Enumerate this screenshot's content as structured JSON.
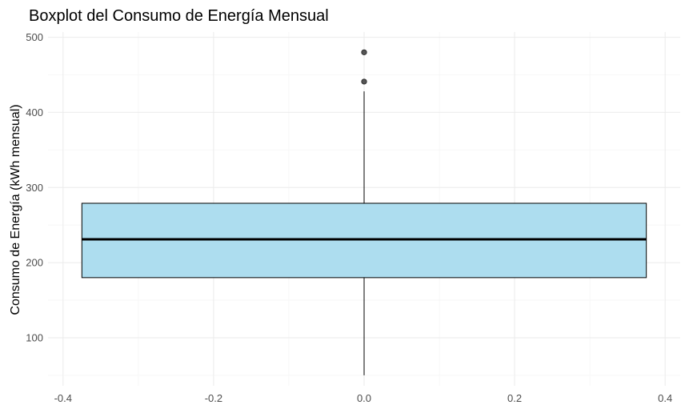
{
  "chart_data": {
    "type": "boxplot",
    "title": "Boxplot del Consumo de Energía Mensual",
    "xlabel": "",
    "ylabel": "Consumo de Energía (kWh mensual)",
    "xlim": [
      -0.42,
      0.42
    ],
    "ylim": [
      36,
      507
    ],
    "x_ticks": [
      -0.4,
      -0.2,
      0.0,
      0.2,
      0.4
    ],
    "x_tick_labels": [
      "-0.4",
      "-0.2",
      "0.0",
      "0.2",
      "0.4"
    ],
    "y_ticks": [
      100,
      200,
      300,
      400,
      500
    ],
    "y_tick_labels": [
      "100",
      "200",
      "300",
      "400",
      "500"
    ],
    "grid": true,
    "box": {
      "x_center": 0.0,
      "x_min": -0.375,
      "x_max": 0.375,
      "whisker_low": 50,
      "q1": 180,
      "median": 231,
      "q3": 279,
      "whisker_high": 428
    },
    "outliers": [
      441,
      480
    ],
    "colors": {
      "box_fill": "#ADDDEF",
      "outline": "#000000",
      "outlier": "#555555",
      "grid_major": "#EBEBEB",
      "grid_minor": "#F5F5F5"
    }
  }
}
